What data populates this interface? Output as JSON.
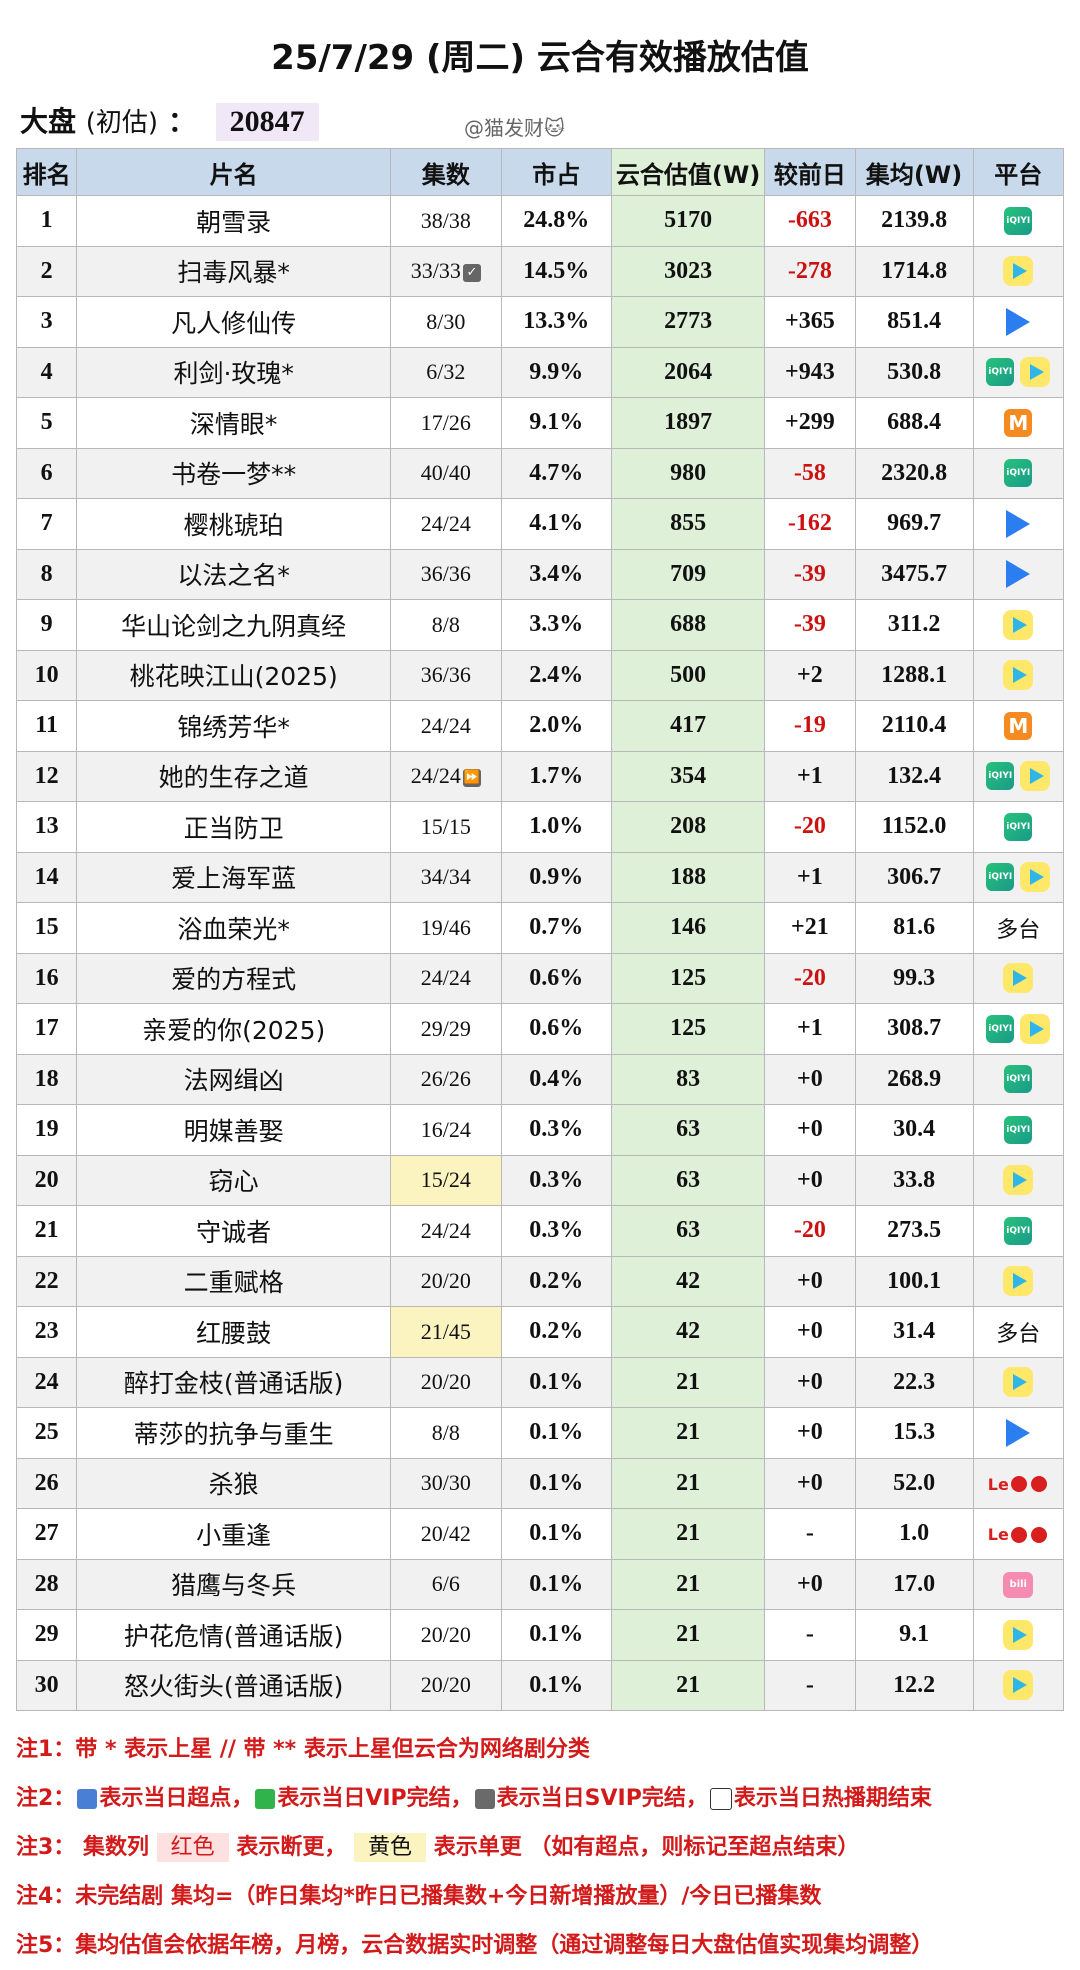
{
  "title": "25/7/29 (周二) 云合有效播放估值",
  "summary": {
    "label": "大盘",
    "paren": "(初估)",
    "colon": "：",
    "value": "20847"
  },
  "author": "@猫发财🐱",
  "headers": [
    "排名",
    "片名",
    "集数",
    "市占",
    "云合估值(W)",
    "较前日",
    "集均(W)",
    "平台"
  ],
  "rows": [
    {
      "rank": "1",
      "name": "朝雪录",
      "eps": "38/38",
      "share": "24.8%",
      "est": "5170",
      "diff": "-663",
      "avg": "2139.8",
      "platform": "iqiyi"
    },
    {
      "rank": "2",
      "name": "扫毒风暴*",
      "eps": "33/33",
      "badge": "✓",
      "share": "14.5%",
      "est": "3023",
      "diff": "-278",
      "avg": "1714.8",
      "platform": "tencent"
    },
    {
      "rank": "3",
      "name": "凡人修仙传",
      "eps": "8/30",
      "share": "13.3%",
      "est": "2773",
      "diff": "+365",
      "avg": "851.4",
      "platform": "youku"
    },
    {
      "rank": "4",
      "name": "利剑·玫瑰*",
      "eps": "6/32",
      "share": "9.9%",
      "est": "2064",
      "diff": "+943",
      "avg": "530.8",
      "platform": "iqiyi+tencent"
    },
    {
      "rank": "5",
      "name": "深情眼*",
      "eps": "17/26",
      "share": "9.1%",
      "est": "1897",
      "diff": "+299",
      "avg": "688.4",
      "platform": "mango"
    },
    {
      "rank": "6",
      "name": "书卷一梦**",
      "eps": "40/40",
      "share": "4.7%",
      "est": "980",
      "diff": "-58",
      "avg": "2320.8",
      "platform": "iqiyi"
    },
    {
      "rank": "7",
      "name": "樱桃琥珀",
      "eps": "24/24",
      "share": "4.1%",
      "est": "855",
      "diff": "-162",
      "avg": "969.7",
      "platform": "youku"
    },
    {
      "rank": "8",
      "name": "以法之名*",
      "eps": "36/36",
      "share": "3.4%",
      "est": "709",
      "diff": "-39",
      "avg": "3475.7",
      "platform": "youku"
    },
    {
      "rank": "9",
      "name": "华山论剑之九阴真经",
      "eps": "8/8",
      "share": "3.3%",
      "est": "688",
      "diff": "-39",
      "avg": "311.2",
      "platform": "tencent"
    },
    {
      "rank": "10",
      "name": "桃花映江山(2025)",
      "eps": "36/36",
      "share": "2.4%",
      "est": "500",
      "diff": "+2",
      "avg": "1288.1",
      "platform": "tencent"
    },
    {
      "rank": "11",
      "name": "锦绣芳华*",
      "eps": "24/24",
      "share": "2.0%",
      "est": "417",
      "diff": "-19",
      "avg": "2110.4",
      "platform": "mango"
    },
    {
      "rank": "12",
      "name": "她的生存之道",
      "eps": "24/24",
      "badge": "⏩",
      "share": "1.7%",
      "est": "354",
      "diff": "+1",
      "avg": "132.4",
      "platform": "iqiyi+tencent"
    },
    {
      "rank": "13",
      "name": "正当防卫",
      "eps": "15/15",
      "share": "1.0%",
      "est": "208",
      "diff": "-20",
      "avg": "1152.0",
      "platform": "iqiyi"
    },
    {
      "rank": "14",
      "name": "爱上海军蓝",
      "eps": "34/34",
      "share": "0.9%",
      "est": "188",
      "diff": "+1",
      "avg": "306.7",
      "platform": "iqiyi+tencent"
    },
    {
      "rank": "15",
      "name": "浴血荣光*",
      "eps": "19/46",
      "share": "0.7%",
      "est": "146",
      "diff": "+21",
      "avg": "81.6",
      "platform": "multi"
    },
    {
      "rank": "16",
      "name": "爱的方程式",
      "eps": "24/24",
      "share": "0.6%",
      "est": "125",
      "diff": "-20",
      "avg": "99.3",
      "platform": "tencent"
    },
    {
      "rank": "17",
      "name": "亲爱的你(2025)",
      "eps": "29/29",
      "share": "0.6%",
      "est": "125",
      "diff": "+1",
      "avg": "308.7",
      "platform": "iqiyi+tencent"
    },
    {
      "rank": "18",
      "name": "法网缉凶",
      "eps": "26/26",
      "share": "0.4%",
      "est": "83",
      "diff": "+0",
      "avg": "268.9",
      "platform": "iqiyi"
    },
    {
      "rank": "19",
      "name": "明媒善娶",
      "eps": "16/24",
      "share": "0.3%",
      "est": "63",
      "diff": "+0",
      "avg": "30.4",
      "platform": "iqiyi"
    },
    {
      "rank": "20",
      "name": "窃心",
      "eps": "15/24",
      "epsYellow": true,
      "share": "0.3%",
      "est": "63",
      "diff": "+0",
      "avg": "33.8",
      "platform": "tencent"
    },
    {
      "rank": "21",
      "name": "守诚者",
      "eps": "24/24",
      "share": "0.3%",
      "est": "63",
      "diff": "-20",
      "avg": "273.5",
      "platform": "iqiyi"
    },
    {
      "rank": "22",
      "name": "二重赋格",
      "eps": "20/20",
      "share": "0.2%",
      "est": "42",
      "diff": "+0",
      "avg": "100.1",
      "platform": "tencent"
    },
    {
      "rank": "23",
      "name": "红腰鼓",
      "eps": "21/45",
      "epsYellow": true,
      "share": "0.2%",
      "est": "42",
      "diff": "+0",
      "avg": "31.4",
      "platform": "multi"
    },
    {
      "rank": "24",
      "name": "醉打金枝(普通话版)",
      "eps": "20/20",
      "share": "0.1%",
      "est": "21",
      "diff": "+0",
      "avg": "22.3",
      "platform": "tencent"
    },
    {
      "rank": "25",
      "name": "蒂莎的抗争与重生",
      "eps": "8/8",
      "share": "0.1%",
      "est": "21",
      "diff": "+0",
      "avg": "15.3",
      "platform": "youku"
    },
    {
      "rank": "26",
      "name": "杀狼",
      "eps": "30/30",
      "share": "0.1%",
      "est": "21",
      "diff": "+0",
      "avg": "52.0",
      "platform": "le"
    },
    {
      "rank": "27",
      "name": "小重逢",
      "eps": "20/42",
      "share": "0.1%",
      "est": "21",
      "diff": "-",
      "avg": "1.0",
      "platform": "le"
    },
    {
      "rank": "28",
      "name": "猎鹰与冬兵",
      "eps": "6/6",
      "share": "0.1%",
      "est": "21",
      "diff": "+0",
      "avg": "17.0",
      "platform": "bilibili"
    },
    {
      "rank": "29",
      "name": "护花危情(普通话版)",
      "eps": "20/20",
      "share": "0.1%",
      "est": "21",
      "diff": "-",
      "avg": "9.1",
      "platform": "tencent"
    },
    {
      "rank": "30",
      "name": "怒火街头(普通话版)",
      "eps": "20/20",
      "share": "0.1%",
      "est": "21",
      "diff": "-",
      "avg": "12.2",
      "platform": "tencent"
    }
  ],
  "platform_text": {
    "multi": "多台",
    "iqiyi": "iQIYI",
    "le": "Le",
    "bilibili": "bili"
  },
  "notes": {
    "n1": "注1：带 * 表示上星 // 带 ** 表示上星但云合为网络剧分类",
    "n2": [
      "注2：",
      "表示当日超点，",
      "表示当日VIP完结，",
      "表示当日SVIP完结，",
      "表示当日热播期结束"
    ],
    "n3": [
      "注3：",
      "集数列",
      "红色",
      "表示断更，",
      "黄色",
      "表示单更 （如有超点，则标记至超点结束）"
    ],
    "n4": "注4：未完结剧 集均=（昨日集均*昨日已播集数+今日新增播放量）/今日已播集数",
    "n5": "注5：集均估值会依据年榜，月榜，云合数据实时调整（通过调整每日大盘估值实现集均调整）"
  },
  "colors": {
    "header": "#c9d9ec",
    "estimate_col": "#dff0d8",
    "negative": "#cc1111",
    "note": "#d31a1a"
  }
}
